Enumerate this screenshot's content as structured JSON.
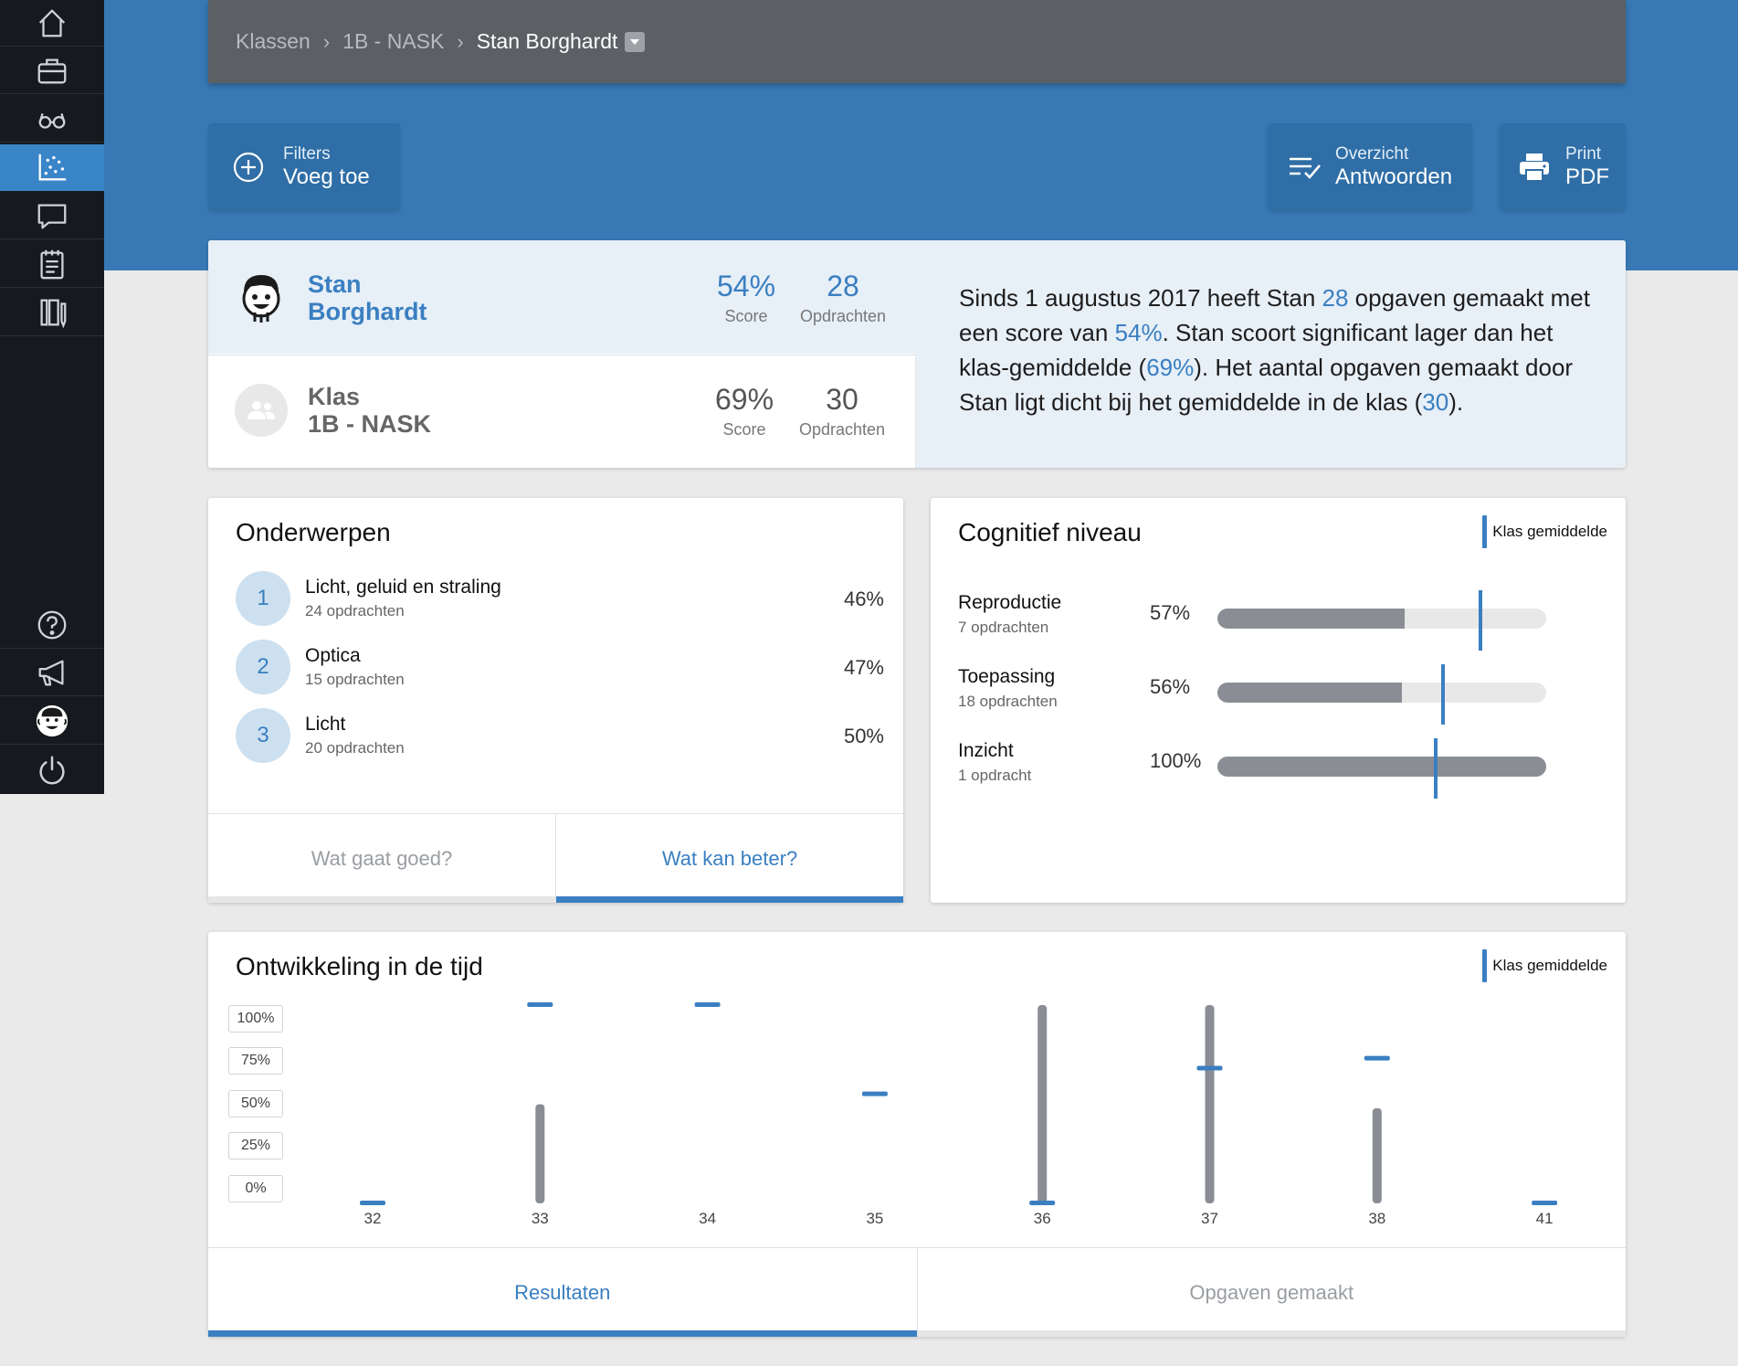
{
  "sidebar": {
    "items": [
      {
        "icon": "home-icon",
        "active": false
      },
      {
        "icon": "briefcase-icon",
        "active": false
      },
      {
        "icon": "glasses-icon",
        "active": false
      },
      {
        "icon": "scatter-chart-icon",
        "active": true
      },
      {
        "icon": "chat-icon",
        "active": false
      },
      {
        "icon": "notepad-icon",
        "active": false
      },
      {
        "icon": "book-pencil-icon",
        "active": false
      }
    ],
    "bottom_items": [
      {
        "icon": "help-icon"
      },
      {
        "icon": "megaphone-icon"
      },
      {
        "icon": "user-avatar-icon"
      },
      {
        "icon": "power-icon"
      }
    ]
  },
  "breadcrumb": {
    "items": [
      "Klassen",
      "1B - NASK"
    ],
    "current": "Stan Borghardt"
  },
  "toolbar": {
    "filters_label": "Filters",
    "filters_action": "Voeg toe",
    "overview_label": "Overzicht",
    "overview_action": "Antwoorden",
    "print_label": "Print",
    "print_action": "PDF"
  },
  "summary": {
    "student": {
      "first": "Stan",
      "last": "Borghardt",
      "score": "54%",
      "score_label": "Score",
      "count": "28",
      "count_label": "Opdrachten"
    },
    "klas": {
      "first": "Klas",
      "last": "1B - NASK",
      "score": "69%",
      "score_label": "Score",
      "count": "30",
      "count_label": "Opdrachten"
    },
    "text": {
      "p1": "Sinds 1 augustus 2017 heeft Stan ",
      "v1": "28",
      "p2": " opgaven gemaakt met een score van ",
      "v2": "54%",
      "p3": ". Stan scoort significant lager dan het klas-gemiddelde (",
      "v3": "69%",
      "p4": "). Het aantal opgaven gemaakt door Stan ligt dicht bij het gemiddelde in de klas (",
      "v4": "30",
      "p5": ")."
    }
  },
  "topics": {
    "title": "Onderwerpen",
    "items": [
      {
        "num": "1",
        "title": "Licht, geluid en straling",
        "sub": "24 opdrachten",
        "pct": "46%"
      },
      {
        "num": "2",
        "title": "Optica",
        "sub": "15 opdrachten",
        "pct": "47%"
      },
      {
        "num": "3",
        "title": "Licht",
        "sub": "20 opdrachten",
        "pct": "50%"
      }
    ],
    "tabs": [
      {
        "label": "Wat gaat goed?",
        "active": false
      },
      {
        "label": "Wat kan beter?",
        "active": true
      }
    ]
  },
  "cognitive": {
    "title": "Cognitief niveau",
    "legend": "Klas gemiddelde",
    "items": [
      {
        "label": "Reproductie",
        "sub": "7 opdrachten",
        "pct": "57%",
        "value": 57,
        "klas_value": 80
      },
      {
        "label": "Toepassing",
        "sub": "18 opdrachten",
        "pct": "56%",
        "value": 56,
        "klas_value": 68.5
      },
      {
        "label": "Inzicht",
        "sub": "1 opdracht",
        "pct": "100%",
        "value": 100,
        "klas_value": 66.5
      }
    ]
  },
  "development": {
    "title": "Ontwikkeling in de tijd",
    "legend": "Klas gemiddelde",
    "tabs": [
      {
        "label": "Resultaten",
        "active": true
      },
      {
        "label": "Opgaven gemaakt",
        "active": false
      }
    ]
  },
  "chart_data": {
    "type": "bar",
    "title": "Ontwikkeling in de tijd",
    "categories": [
      "32",
      "33",
      "34",
      "35",
      "36",
      "37",
      "38",
      "41"
    ],
    "y_ticks": [
      "100%",
      "75%",
      "50%",
      "25%",
      "0%"
    ],
    "ylim": [
      0,
      100
    ],
    "series": [
      {
        "values": [
          0,
          50,
          0,
          0,
          100,
          100,
          48,
          0
        ]
      },
      {
        "name": "Klas gemiddelde",
        "values": [
          0,
          100,
          100,
          55,
          0,
          68,
          73,
          0
        ]
      }
    ]
  },
  "colors": {
    "accent": "#3a7fc1",
    "band": "#3879b5",
    "bar_grey": "#8a8e94",
    "sidebar": "#161a1e"
  }
}
